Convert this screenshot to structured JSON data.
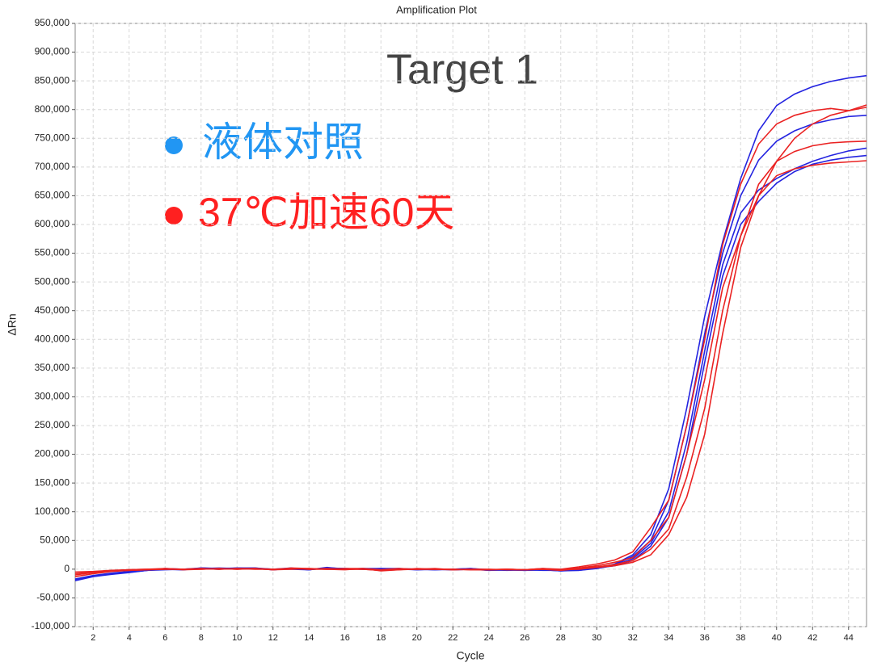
{
  "chart_data": {
    "type": "line",
    "title": "Amplification Plot",
    "x_label": "Cycle",
    "y_label": "ΔRn",
    "annotations": [
      "Target 1"
    ],
    "legend": [
      {
        "label": "液体对照",
        "color": "#2196f3"
      },
      {
        "label": "37℃加速60天",
        "color": "#ff2020"
      }
    ],
    "x": [
      1,
      2,
      3,
      4,
      5,
      6,
      7,
      8,
      9,
      10,
      11,
      12,
      13,
      14,
      15,
      16,
      17,
      18,
      19,
      20,
      21,
      22,
      23,
      24,
      25,
      26,
      27,
      28,
      29,
      30,
      31,
      32,
      33,
      34,
      35,
      36,
      37,
      38,
      39,
      40,
      41,
      42,
      43,
      44,
      45
    ],
    "xlim": [
      1,
      45
    ],
    "xticks": [
      2,
      4,
      6,
      8,
      10,
      12,
      14,
      16,
      18,
      20,
      22,
      24,
      26,
      28,
      30,
      32,
      34,
      36,
      38,
      40,
      42,
      44
    ],
    "ylim": [
      -100000,
      950000
    ],
    "yticks": [
      {
        "value": -100000,
        "label": "-100,000"
      },
      {
        "value": -50000,
        "label": "-50,000"
      },
      0,
      {
        "value": 50000,
        "label": "50,000"
      },
      {
        "value": 100000,
        "label": "100,000"
      },
      {
        "value": 150000,
        "label": "150,000"
      },
      {
        "value": 200000,
        "label": "200,000"
      },
      {
        "value": 250000,
        "label": "250,000"
      },
      {
        "value": 300000,
        "label": "300,000"
      },
      {
        "value": 350000,
        "label": "350,000"
      },
      {
        "value": 400000,
        "label": "400,000"
      },
      {
        "value": 450000,
        "label": "450,000"
      },
      {
        "value": 500000,
        "label": "500,000"
      },
      {
        "value": 550000,
        "label": "550,000"
      },
      {
        "value": 600000,
        "label": "600,000"
      },
      {
        "value": 650000,
        "label": "650,000"
      },
      {
        "value": 700000,
        "label": "700,000"
      },
      {
        "value": 750000,
        "label": "750,000"
      },
      {
        "value": 800000,
        "label": "800,000"
      },
      {
        "value": 850000,
        "label": "850,000"
      },
      {
        "value": 900000,
        "label": "900,000"
      },
      {
        "value": 950000,
        "label": "950,000"
      }
    ],
    "grid": true,
    "series": [
      {
        "color": "#2424e0",
        "values": [
          -20000,
          -13000,
          -9000,
          -6000,
          -2000,
          0,
          -1000,
          2000,
          1000,
          2000,
          1000,
          -1000,
          1000,
          -1000,
          3000,
          0,
          1000,
          0,
          0,
          -1000,
          0,
          -1000,
          0,
          -2000,
          -1000,
          -2000,
          -1000,
          -3000,
          -2000,
          2000,
          9000,
          25000,
          60000,
          140000,
          280000,
          440000,
          570000,
          680000,
          763000,
          807000,
          827000,
          840000,
          849000,
          855000,
          859000
        ]
      },
      {
        "color": "#2424e0",
        "values": [
          -18000,
          -12000,
          -8000,
          -5000,
          -2000,
          -1000,
          0,
          1000,
          2000,
          1000,
          2000,
          0,
          0,
          -1000,
          2000,
          1000,
          0,
          1000,
          0,
          0,
          -1000,
          0,
          1000,
          -1000,
          -2000,
          -1000,
          -2000,
          -2000,
          -1000,
          3000,
          8000,
          22000,
          50000,
          120000,
          250000,
          410000,
          550000,
          650000,
          712000,
          745000,
          763000,
          775000,
          782000,
          788000,
          790000
        ]
      },
      {
        "color": "#2424e0",
        "values": [
          -17000,
          -11000,
          -7000,
          -4000,
          -1000,
          0,
          -1000,
          1000,
          0,
          2000,
          2000,
          -1000,
          1000,
          0,
          1000,
          0,
          1000,
          1000,
          1000,
          -1000,
          0,
          -1000,
          0,
          -1000,
          -1000,
          -2000,
          0,
          -2000,
          -2000,
          1000,
          7000,
          18000,
          45000,
          100000,
          220000,
          380000,
          530000,
          620000,
          660000,
          680000,
          697000,
          710000,
          720000,
          728000,
          733000
        ]
      },
      {
        "color": "#2424e0",
        "values": [
          -19000,
          -12000,
          -8000,
          -5000,
          -2000,
          1000,
          0,
          2000,
          1000,
          1000,
          1000,
          0,
          2000,
          -1000,
          2000,
          1000,
          0,
          0,
          1000,
          0,
          -1000,
          0,
          1000,
          -2000,
          -1000,
          -2000,
          -1000,
          -3000,
          -1000,
          2000,
          6000,
          15000,
          40000,
          90000,
          200000,
          360000,
          510000,
          600000,
          640000,
          672000,
          692000,
          705000,
          712000,
          717000,
          720000
        ]
      },
      {
        "color": "#ea2222",
        "values": [
          -13000,
          -8000,
          -4000,
          -2000,
          -1000,
          1000,
          0,
          0,
          1000,
          0,
          1000,
          -1000,
          2000,
          1000,
          0,
          1000,
          1000,
          -1000,
          1000,
          0,
          1000,
          -1000,
          0,
          -1000,
          0,
          -1000,
          1000,
          0,
          4000,
          9000,
          16000,
          30000,
          72000,
          120000,
          250000,
          400000,
          565000,
          670000,
          740000,
          775000,
          790000,
          798000,
          802000,
          798000,
          808000
        ]
      },
      {
        "color": "#ea2222",
        "values": [
          -10000,
          -6000,
          -3000,
          -2000,
          -1000,
          0,
          0,
          1000,
          0,
          1000,
          0,
          0,
          1000,
          0,
          1000,
          0,
          0,
          -2000,
          0,
          0,
          0,
          0,
          -1000,
          -1000,
          0,
          -1000,
          0,
          -1000,
          2000,
          6000,
          12000,
          20000,
          50000,
          90000,
          200000,
          330000,
          490000,
          580000,
          650000,
          710000,
          750000,
          775000,
          790000,
          798000,
          804000
        ]
      },
      {
        "color": "#ea2222",
        "values": [
          -8000,
          -5000,
          -3000,
          -1000,
          0,
          1000,
          -1000,
          0,
          1000,
          0,
          1000,
          0,
          1000,
          0,
          0,
          -1000,
          1000,
          -3000,
          -1000,
          0,
          0,
          -1000,
          0,
          0,
          -1000,
          -1000,
          0,
          -2000,
          1000,
          4000,
          8000,
          15000,
          35000,
          70000,
          160000,
          280000,
          450000,
          580000,
          670000,
          710000,
          727000,
          737000,
          742000,
          744000,
          745000
        ]
      },
      {
        "color": "#ea2222",
        "values": [
          -5000,
          -4000,
          -2000,
          -1000,
          0,
          0,
          0,
          1000,
          0,
          1000,
          1000,
          -1000,
          0,
          1000,
          0,
          0,
          0,
          -2000,
          -1000,
          1000,
          0,
          0,
          -1000,
          -1000,
          0,
          -1000,
          1000,
          -1000,
          0,
          3000,
          6000,
          12000,
          25000,
          60000,
          125000,
          235000,
          410000,
          560000,
          650000,
          685000,
          697000,
          703000,
          707000,
          709000,
          711000
        ]
      }
    ]
  }
}
